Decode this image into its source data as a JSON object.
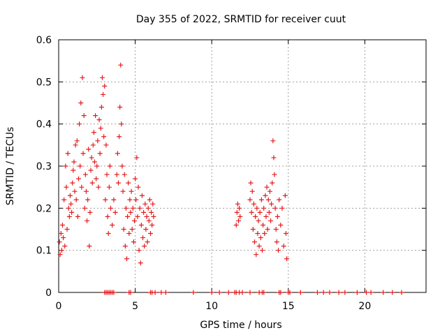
{
  "chart_data": {
    "type": "scatter",
    "title": "Day 355 of 2022, SRMTID for receiver cuut",
    "xlabel": "GPS time / hours",
    "ylabel": "SRMTID / TECUs",
    "xlim": [
      0,
      24
    ],
    "ylim": [
      0,
      0.6
    ],
    "x_ticks": [
      0,
      5,
      10,
      15,
      20
    ],
    "y_ticks": [
      0,
      0.1,
      0.2,
      0.3,
      0.4,
      0.5,
      0.6
    ],
    "x_tick_labels": [
      "0",
      "5",
      "10",
      "15",
      "20"
    ],
    "y_tick_labels": [
      "0",
      "0.1",
      "0.2",
      "0.3",
      "0.4",
      "0.5",
      "0.6"
    ],
    "grid": true,
    "marker": "+",
    "color": "#e41a1c",
    "series": [
      {
        "name": "SRMTID",
        "points": [
          [
            0.05,
            0.12
          ],
          [
            0.1,
            0.09
          ],
          [
            0.15,
            0.14
          ],
          [
            0.2,
            0.1
          ],
          [
            0.25,
            0.16
          ],
          [
            0.3,
            0.13
          ],
          [
            0.35,
            0.22
          ],
          [
            0.4,
            0.11
          ],
          [
            0.45,
            0.3
          ],
          [
            0.5,
            0.25
          ],
          [
            0.55,
            0.15
          ],
          [
            0.6,
            0.33
          ],
          [
            0.65,
            0.2
          ],
          [
            0.7,
            0.18
          ],
          [
            0.75,
            0.23
          ],
          [
            0.8,
            0.21
          ],
          [
            0.85,
            0.19
          ],
          [
            0.9,
            0.26
          ],
          [
            0.95,
            0.29
          ],
          [
            1.0,
            0.31
          ],
          [
            1.05,
            0.24
          ],
          [
            1.1,
            0.35
          ],
          [
            1.15,
            0.22
          ],
          [
            1.2,
            0.36
          ],
          [
            1.25,
            0.18
          ],
          [
            1.3,
            0.27
          ],
          [
            1.35,
            0.4
          ],
          [
            1.4,
            0.3
          ],
          [
            1.45,
            0.45
          ],
          [
            1.5,
            0.25
          ],
          [
            1.55,
            0.51
          ],
          [
            1.6,
            0.33
          ],
          [
            1.65,
            0.42
          ],
          [
            1.7,
            0.2
          ],
          [
            1.75,
            0.28
          ],
          [
            1.8,
            0.24
          ],
          [
            1.85,
            0.17
          ],
          [
            1.9,
            0.22
          ],
          [
            1.95,
            0.34
          ],
          [
            2.0,
            0.11
          ],
          [
            2.05,
            0.19
          ],
          [
            2.1,
            0.29
          ],
          [
            2.15,
            0.32
          ],
          [
            2.2,
            0.26
          ],
          [
            2.25,
            0.35
          ],
          [
            2.3,
            0.38
          ],
          [
            2.35,
            0.31
          ],
          [
            2.4,
            0.42
          ],
          [
            2.45,
            0.27
          ],
          [
            2.5,
            0.3
          ],
          [
            2.55,
            0.36
          ],
          [
            2.6,
            0.25
          ],
          [
            2.65,
            0.41
          ],
          [
            2.7,
            0.33
          ],
          [
            2.75,
            0.39
          ],
          [
            2.8,
            0.44
          ],
          [
            2.85,
            0.51
          ],
          [
            2.9,
            0.47
          ],
          [
            2.95,
            0.37
          ],
          [
            3.0,
            0.49
          ],
          [
            3.05,
            0.22
          ],
          [
            3.1,
            0.35
          ],
          [
            3.15,
            0.28
          ],
          [
            3.2,
            0.18
          ],
          [
            3.25,
            0.14
          ],
          [
            3.3,
            0.25
          ],
          [
            3.35,
            0.3
          ],
          [
            3.4,
            0.2
          ],
          [
            3.5,
            0.16
          ],
          [
            3.6,
            0.22
          ],
          [
            3.7,
            0.19
          ],
          [
            3.8,
            0.28
          ],
          [
            3.85,
            0.33
          ],
          [
            3.9,
            0.26
          ],
          [
            3.95,
            0.37
          ],
          [
            4.0,
            0.44
          ],
          [
            4.05,
            0.54
          ],
          [
            4.1,
            0.4
          ],
          [
            4.15,
            0.3
          ],
          [
            4.2,
            0.24
          ],
          [
            4.25,
            0.15
          ],
          [
            4.3,
            0.28
          ],
          [
            4.35,
            0.11
          ],
          [
            4.4,
            0.2
          ],
          [
            4.45,
            0.08
          ],
          [
            4.5,
            0.18
          ],
          [
            4.55,
            0.26
          ],
          [
            4.6,
            0.14
          ],
          [
            4.65,
            0.22
          ],
          [
            4.7,
            0.19
          ],
          [
            4.75,
            0.24
          ],
          [
            4.8,
            0.15
          ],
          [
            4.85,
            0.2
          ],
          [
            4.9,
            0.12
          ],
          [
            4.95,
            0.17
          ],
          [
            5.0,
            0.27
          ],
          [
            5.05,
            0.22
          ],
          [
            5.1,
            0.32
          ],
          [
            5.15,
            0.18
          ],
          [
            5.2,
            0.25
          ],
          [
            5.25,
            0.1
          ],
          [
            5.3,
            0.2
          ],
          [
            5.35,
            0.07
          ],
          [
            5.4,
            0.16
          ],
          [
            5.45,
            0.23
          ],
          [
            5.5,
            0.13
          ],
          [
            5.55,
            0.19
          ],
          [
            5.6,
            0.11
          ],
          [
            5.65,
            0.21
          ],
          [
            5.7,
            0.15
          ],
          [
            5.75,
            0.18
          ],
          [
            5.8,
            0.12
          ],
          [
            5.85,
            0.2
          ],
          [
            5.9,
            0.17
          ],
          [
            5.95,
            0.22
          ],
          [
            6.0,
            0.14
          ],
          [
            6.05,
            0.19
          ],
          [
            6.1,
            0.16
          ],
          [
            6.15,
            0.21
          ],
          [
            6.2,
            0.18
          ],
          [
            11.6,
            0.16
          ],
          [
            11.65,
            0.19
          ],
          [
            11.7,
            0.21
          ],
          [
            11.75,
            0.17
          ],
          [
            11.8,
            0.2
          ],
          [
            11.85,
            0.18
          ],
          [
            12.5,
            0.22
          ],
          [
            12.55,
            0.26
          ],
          [
            12.6,
            0.19
          ],
          [
            12.65,
            0.24
          ],
          [
            12.7,
            0.15
          ],
          [
            12.75,
            0.21
          ],
          [
            12.8,
            0.12
          ],
          [
            12.85,
            0.18
          ],
          [
            12.9,
            0.09
          ],
          [
            12.95,
            0.2
          ],
          [
            13.0,
            0.14
          ],
          [
            13.05,
            0.17
          ],
          [
            13.1,
            0.11
          ],
          [
            13.15,
            0.19
          ],
          [
            13.2,
            0.13
          ],
          [
            13.25,
            0.22
          ],
          [
            13.3,
            0.1
          ],
          [
            13.35,
            0.16
          ],
          [
            13.4,
            0.2
          ],
          [
            13.45,
            0.14
          ],
          [
            13.5,
            0.23
          ],
          [
            13.55,
            0.18
          ],
          [
            13.6,
            0.25
          ],
          [
            13.65,
            0.15
          ],
          [
            13.7,
            0.22
          ],
          [
            13.75,
            0.19
          ],
          [
            13.8,
            0.24
          ],
          [
            13.85,
            0.17
          ],
          [
            13.9,
            0.21
          ],
          [
            13.95,
            0.26
          ],
          [
            14.0,
            0.36
          ],
          [
            14.05,
            0.32
          ],
          [
            14.1,
            0.28
          ],
          [
            14.15,
            0.2
          ],
          [
            14.2,
            0.15
          ],
          [
            14.25,
            0.12
          ],
          [
            14.3,
            0.18
          ],
          [
            14.35,
            0.1
          ],
          [
            14.4,
            0.22
          ],
          [
            14.5,
            0.16
          ],
          [
            14.6,
            0.2
          ],
          [
            14.7,
            0.11
          ],
          [
            14.8,
            0.23
          ],
          [
            14.85,
            0.14
          ],
          [
            14.9,
            0.08
          ]
        ]
      }
    ],
    "zero_points": [
      3.0,
      3.1,
      3.2,
      3.3,
      3.4,
      3.5,
      3.6,
      4.6,
      4.7,
      6.0,
      6.1,
      6.3,
      6.7,
      7.0,
      8.8,
      10.0,
      10.5,
      11.1,
      11.5,
      11.6,
      11.8,
      12.0,
      12.5,
      13.1,
      13.3,
      13.4,
      14.4,
      14.5,
      15.0,
      15.1,
      15.8,
      16.9,
      17.3,
      17.7,
      18.3,
      18.7,
      19.5,
      20.1,
      20.4,
      21.2,
      21.8,
      22.4
    ]
  }
}
